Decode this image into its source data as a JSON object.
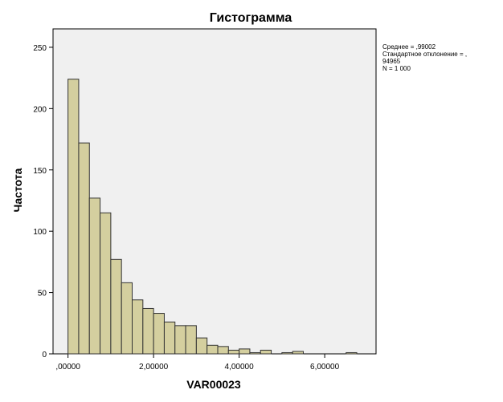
{
  "chart_data": {
    "type": "bar",
    "title": "Гистограмма",
    "xlabel": "VAR00023",
    "ylabel": "Частота",
    "xlim": [
      -0.35,
      7.2
    ],
    "ylim": [
      0,
      265
    ],
    "x_ticks": [
      {
        "value": 0,
        "label": ",00000"
      },
      {
        "value": 2,
        "label": "2,00000"
      },
      {
        "value": 4,
        "label": "4,00000"
      },
      {
        "value": 6,
        "label": "6,00000"
      }
    ],
    "y_ticks": [
      {
        "value": 0,
        "label": "0"
      },
      {
        "value": 50,
        "label": "50"
      },
      {
        "value": 100,
        "label": "100"
      },
      {
        "value": 150,
        "label": "150"
      },
      {
        "value": 200,
        "label": "200"
      },
      {
        "value": 250,
        "label": "250"
      }
    ],
    "grid": false,
    "bin_width": 0.25,
    "bins": [
      {
        "x": 0.0,
        "value": 224
      },
      {
        "x": 0.25,
        "value": 172
      },
      {
        "x": 0.5,
        "value": 127
      },
      {
        "x": 0.75,
        "value": 115
      },
      {
        "x": 1.0,
        "value": 77
      },
      {
        "x": 1.25,
        "value": 58
      },
      {
        "x": 1.5,
        "value": 44
      },
      {
        "x": 1.75,
        "value": 37
      },
      {
        "x": 2.0,
        "value": 33
      },
      {
        "x": 2.25,
        "value": 26
      },
      {
        "x": 2.5,
        "value": 23
      },
      {
        "x": 2.75,
        "value": 23
      },
      {
        "x": 3.0,
        "value": 13
      },
      {
        "x": 3.25,
        "value": 7
      },
      {
        "x": 3.5,
        "value": 6
      },
      {
        "x": 3.75,
        "value": 3
      },
      {
        "x": 4.0,
        "value": 4
      },
      {
        "x": 4.25,
        "value": 1
      },
      {
        "x": 4.5,
        "value": 3
      },
      {
        "x": 4.75,
        "value": 0
      },
      {
        "x": 5.0,
        "value": 1
      },
      {
        "x": 5.25,
        "value": 2
      },
      {
        "x": 5.5,
        "value": 0
      },
      {
        "x": 5.75,
        "value": 0
      },
      {
        "x": 6.0,
        "value": 0
      },
      {
        "x": 6.25,
        "value": 0
      },
      {
        "x": 6.5,
        "value": 1
      }
    ],
    "stats": {
      "mean": "Среднее = ,99002",
      "std_line1": "Стандартное отклонение = ,",
      "std_line2": "94965",
      "n": "N = 1 000"
    },
    "colors": {
      "bar_fill": "#d4cf9f",
      "bar_stroke": "#333333",
      "plot_background": "#f0f0f0"
    }
  }
}
